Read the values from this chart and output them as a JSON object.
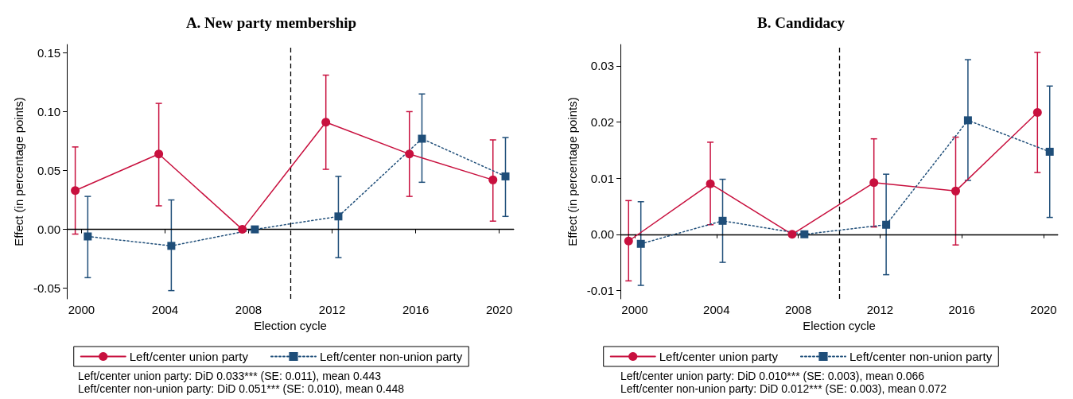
{
  "chart_data": [
    {
      "type": "line",
      "title": "A. New party membership",
      "xlabel": "Election cycle",
      "ylabel": "Effect (in percentage points)",
      "xlim": [
        1999.3,
        2020.7
      ],
      "xticks": [
        2000,
        2004,
        2008,
        2012,
        2016,
        2020
      ],
      "ylim": [
        -0.059,
        0.157
      ],
      "yticks": [
        {
          "value": -0.05,
          "label": "-0.05"
        },
        {
          "value": 0,
          "label": "0.00"
        },
        {
          "value": 0.05,
          "label": "0.05"
        },
        {
          "value": 0.1,
          "label": "0.10"
        },
        {
          "value": 0.15,
          "label": "0.15"
        }
      ],
      "legend": "bottom",
      "series": [
        {
          "name": "Left/center union party",
          "color": "#c8103e",
          "marker": "circle",
          "line_style": "solid",
          "x": [
            1999.7,
            2003.7,
            2007.7,
            2011.7,
            2015.7,
            2019.7
          ],
          "values": [
            0.033,
            0.064,
            0,
            0.091,
            0.064,
            0.042
          ],
          "errors": [
            [
              -0.004,
              0.07
            ],
            [
              0.02,
              0.107
            ],
            null,
            [
              0.051,
              0.131
            ],
            [
              0.028,
              0.1
            ],
            [
              0.007,
              0.076
            ]
          ]
        },
        {
          "name": "Left/center non-union party",
          "color": "#1f4e79",
          "marker": "square",
          "line_style": "dotted",
          "x": [
            2000.3,
            2004.3,
            2008.3,
            2012.3,
            2016.3,
            2020.3
          ],
          "values": [
            -0.006,
            -0.014,
            0,
            0.011,
            0.077,
            0.045
          ],
          "errors": [
            [
              -0.041,
              0.028
            ],
            [
              -0.052,
              0.025
            ],
            null,
            [
              -0.024,
              0.045
            ],
            [
              0.04,
              0.115
            ],
            [
              0.011,
              0.078
            ]
          ]
        }
      ],
      "ref_lines": [
        {
          "axis": "x",
          "value": 2010,
          "color": "#000000",
          "line_style": "dashed"
        },
        {
          "axis": "y",
          "value": 0,
          "color": "#000000",
          "line_style": "solid"
        }
      ],
      "annotations": [
        "Left/center union party: DiD 0.033*** (SE: 0.011), mean 0.443",
        "Left/center non-union party: DiD 0.051*** (SE: 0.010), mean 0.448"
      ]
    },
    {
      "type": "line",
      "title": "B. Candidacy",
      "xlabel": "Election cycle",
      "ylabel": "Effect (in percentage points)",
      "xlim": [
        1999.3,
        2020.7
      ],
      "xticks": [
        2000,
        2004,
        2008,
        2012,
        2016,
        2020
      ],
      "ylim": [
        -0.0115,
        0.0338
      ],
      "yticks": [
        {
          "value": -0.01,
          "label": "-0.01"
        },
        {
          "value": 0,
          "label": "0.00"
        },
        {
          "value": 0.01,
          "label": "0.01"
        },
        {
          "value": 0.02,
          "label": "0.02"
        },
        {
          "value": 0.03,
          "label": "0.03"
        }
      ],
      "legend": "bottom",
      "series": [
        {
          "name": "Left/center union party",
          "color": "#c8103e",
          "marker": "circle",
          "line_style": "solid",
          "x": [
            1999.7,
            2003.7,
            2007.7,
            2011.7,
            2015.7,
            2019.7
          ],
          "values": [
            -0.0012,
            0.009,
            0,
            0.0092,
            0.0077,
            0.0217
          ],
          "errors": [
            [
              -0.0083,
              0.006
            ],
            [
              0.0017,
              0.0164
            ],
            null,
            [
              0.0013,
              0.017
            ],
            [
              -0.0019,
              0.0173
            ],
            [
              0.011,
              0.0324
            ]
          ]
        },
        {
          "name": "Left/center non-union party",
          "color": "#1f4e79",
          "marker": "square",
          "line_style": "dotted",
          "x": [
            2000.3,
            2004.3,
            2008.3,
            2012.3,
            2016.3,
            2020.3
          ],
          "values": [
            -0.0017,
            0.0024,
            0,
            0.0017,
            0.0203,
            0.0147
          ],
          "errors": [
            [
              -0.0091,
              0.0058
            ],
            [
              -0.005,
              0.0098
            ],
            null,
            [
              -0.0072,
              0.0107
            ],
            [
              0.0096,
              0.0311
            ],
            [
              0.003,
              0.0264
            ]
          ]
        }
      ],
      "ref_lines": [
        {
          "axis": "x",
          "value": 2010,
          "color": "#000000",
          "line_style": "dashed"
        },
        {
          "axis": "y",
          "value": 0,
          "color": "#000000",
          "line_style": "solid"
        }
      ],
      "annotations": [
        "Left/center union party: DiD 0.010*** (SE: 0.003), mean 0.066",
        "Left/center non-union party: DiD 0.012*** (SE: 0.003), mean 0.072"
      ]
    }
  ]
}
